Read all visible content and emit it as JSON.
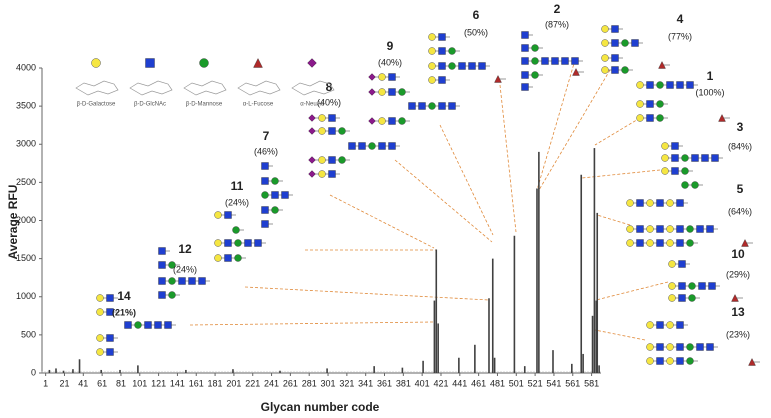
{
  "chart_data": {
    "type": "bar",
    "ylabel": "Average RFU",
    "xlabel": "Glycan number code",
    "xlim": [
      -5,
      591
    ],
    "ylim": [
      0,
      4000
    ],
    "yticks": [
      0,
      500,
      1000,
      1500,
      2000,
      2500,
      3000,
      3500,
      4000
    ],
    "xticks": [
      1,
      21,
      41,
      61,
      81,
      101,
      121,
      141,
      161,
      181,
      201,
      221,
      241,
      261,
      281,
      301,
      321,
      341,
      361,
      381,
      401,
      421,
      441,
      461,
      481,
      501,
      521,
      541,
      561,
      581
    ],
    "color": "#404040",
    "x": [
      5,
      12,
      20,
      30,
      37,
      60,
      80,
      99,
      150,
      200,
      250,
      300,
      350,
      380,
      402,
      414,
      416,
      418,
      440,
      457,
      472,
      476,
      478,
      499,
      510,
      523,
      525,
      540,
      560,
      570,
      572,
      582,
      584,
      586,
      587,
      589
    ],
    "values": [
      40,
      60,
      30,
      50,
      180,
      40,
      40,
      100,
      40,
      50,
      30,
      60,
      90,
      70,
      160,
      950,
      1620,
      650,
      200,
      370,
      980,
      1500,
      200,
      1800,
      90,
      2420,
      2900,
      300,
      120,
      2600,
      250,
      750,
      2950,
      950,
      2100,
      100
    ],
    "monosaccharides": [
      {
        "name": "β-D-Galactose",
        "color": "#f5e642",
        "shape": "circle"
      },
      {
        "name": "β-D-GlcNAc",
        "color": "#1f3fd0",
        "shape": "square"
      },
      {
        "name": "β-D-Mannose",
        "color": "#1a9a2a",
        "shape": "circle"
      },
      {
        "name": "α-L-Fucose",
        "color": "#b02a2a",
        "shape": "triangle"
      },
      {
        "name": "α-NeuAc",
        "color": "#8b1a8b",
        "shape": "diamond"
      }
    ],
    "annotations": [
      {
        "label": "14",
        "note": "(21%)"
      },
      {
        "label": "12",
        "note": "(24%)"
      },
      {
        "label": "11",
        "note": "(24%)"
      },
      {
        "label": "7",
        "note": "(46%)"
      },
      {
        "label": "8",
        "note": "(40%)"
      },
      {
        "label": "9",
        "note": "(40%)"
      },
      {
        "label": "6",
        "note": "(50%)"
      },
      {
        "label": "2",
        "note": "(87%)"
      },
      {
        "label": "4",
        "note": "(77%)"
      },
      {
        "label": "1",
        "note": "(100%)"
      },
      {
        "label": "3",
        "note": "(84%)"
      },
      {
        "label": "5",
        "note": "(64%)"
      },
      {
        "label": "10",
        "note": "(29%)"
      },
      {
        "label": "13",
        "note": "(23%)"
      }
    ]
  }
}
